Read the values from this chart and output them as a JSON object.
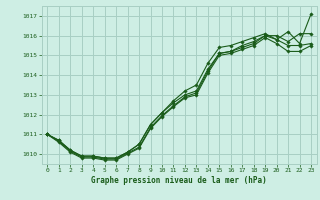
{
  "background_color": "#ceeee4",
  "grid_color": "#a8cfc4",
  "line_color": "#1a5c1a",
  "title": "Graphe pression niveau de la mer (hPa)",
  "xlim": [
    -0.5,
    23.5
  ],
  "ylim": [
    1009.5,
    1017.5
  ],
  "yticks": [
    1010,
    1011,
    1012,
    1013,
    1014,
    1015,
    1016,
    1017
  ],
  "xticks": [
    0,
    1,
    2,
    3,
    4,
    5,
    6,
    7,
    8,
    9,
    10,
    11,
    12,
    13,
    14,
    15,
    16,
    17,
    18,
    19,
    20,
    21,
    22,
    23
  ],
  "series": [
    [
      1011.0,
      1010.7,
      1010.2,
      1009.9,
      1009.9,
      1009.8,
      1009.8,
      1010.1,
      1010.5,
      1011.5,
      1012.1,
      1012.7,
      1013.2,
      1013.5,
      1014.6,
      1015.4,
      1015.5,
      1015.7,
      1015.9,
      1016.1,
      1015.8,
      1016.2,
      1015.6,
      1017.1
    ],
    [
      1011.0,
      1010.7,
      1010.2,
      1009.9,
      1009.9,
      1009.8,
      1009.8,
      1010.1,
      1010.5,
      1011.5,
      1012.1,
      1012.6,
      1013.0,
      1013.2,
      1014.3,
      1015.1,
      1015.2,
      1015.5,
      1015.7,
      1016.0,
      1016.0,
      1015.7,
      1016.1,
      1016.1
    ],
    [
      1011.0,
      1010.65,
      1010.15,
      1009.85,
      1009.85,
      1009.75,
      1009.75,
      1010.05,
      1010.35,
      1011.35,
      1011.95,
      1012.45,
      1012.9,
      1013.1,
      1014.2,
      1015.1,
      1015.2,
      1015.4,
      1015.6,
      1016.0,
      1015.8,
      1015.5,
      1015.5,
      1015.6
    ],
    [
      1011.0,
      1010.6,
      1010.1,
      1009.8,
      1009.8,
      1009.7,
      1009.7,
      1010.0,
      1010.3,
      1011.3,
      1011.9,
      1012.4,
      1012.85,
      1013.0,
      1014.1,
      1015.0,
      1015.1,
      1015.3,
      1015.5,
      1015.9,
      1015.6,
      1015.2,
      1015.2,
      1015.5
    ]
  ]
}
